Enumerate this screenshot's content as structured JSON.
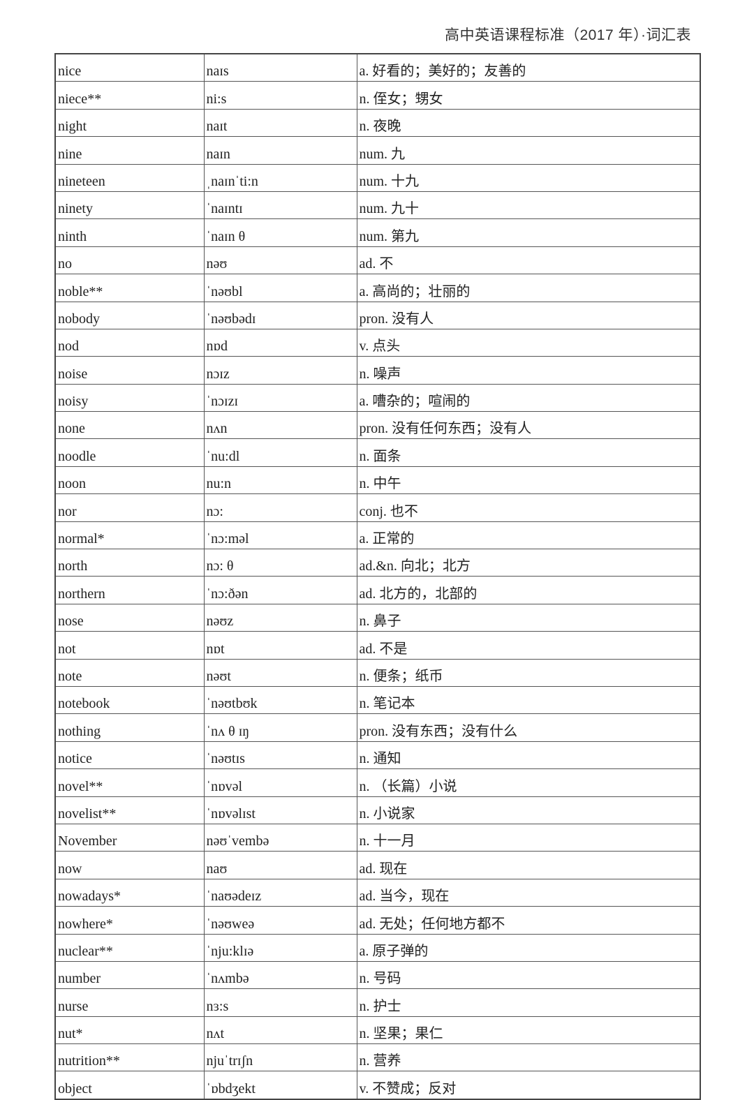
{
  "header": {
    "title": "高中英语课程标准（2017 年）·词汇表"
  },
  "rows": [
    [
      "nice",
      "naɪs",
      "a. 好看的；美好的；友善的"
    ],
    [
      "niece**",
      "ni:s",
      "n. 侄女；甥女"
    ],
    [
      "night",
      "naɪt",
      "n. 夜晚"
    ],
    [
      "nine",
      "naɪn",
      "num. 九"
    ],
    [
      "nineteen",
      "ˌnaɪnˈti:n",
      "num. 十九"
    ],
    [
      "ninety",
      "ˈnaɪntɪ",
      "num. 九十"
    ],
    [
      "ninth",
      "ˈnaɪn θ",
      "num. 第九"
    ],
    [
      "no",
      "nəʊ",
      "ad. 不"
    ],
    [
      "noble**",
      "ˈnəʊbl",
      "a. 高尚的；壮丽的"
    ],
    [
      "nobody",
      "ˈnəʊbədɪ",
      "pron. 没有人"
    ],
    [
      "nod",
      "nɒd",
      "v. 点头"
    ],
    [
      "noise",
      "nɔɪz",
      "n. 噪声"
    ],
    [
      "noisy",
      "ˈnɔɪzɪ",
      "a. 嘈杂的；喧闹的"
    ],
    [
      "none",
      "nʌn",
      "pron. 没有任何东西；没有人"
    ],
    [
      "noodle",
      "ˈnu:dl",
      "n. 面条"
    ],
    [
      "noon",
      "nu:n",
      "n. 中午"
    ],
    [
      "nor",
      "nɔ:",
      "conj. 也不"
    ],
    [
      "normal*",
      "ˈnɔ:məl",
      "a. 正常的"
    ],
    [
      "north",
      "nɔ: θ",
      "ad.&n. 向北；北方"
    ],
    [
      "northern",
      "ˈnɔ:ðən",
      "ad. 北方的，北部的"
    ],
    [
      "nose",
      "nəʊz",
      "n. 鼻子"
    ],
    [
      "not",
      "nɒt",
      "ad. 不是"
    ],
    [
      "note",
      "nəʊt",
      "n. 便条；纸币"
    ],
    [
      "notebook",
      "ˈnəʊtbʊk",
      "n. 笔记本"
    ],
    [
      "nothing",
      "ˈnʌ θ ɪŋ",
      "pron. 没有东西；没有什么"
    ],
    [
      "notice",
      "ˈnəʊtɪs",
      "n. 通知"
    ],
    [
      "novel**",
      "ˈnɒvəl",
      "n. （长篇）小说"
    ],
    [
      "novelist**",
      "ˈnɒvəlɪst",
      "n. 小说家"
    ],
    [
      "November",
      "nəʊˈvembə",
      "n. 十一月"
    ],
    [
      "now",
      "naʊ",
      "ad. 现在"
    ],
    [
      "nowadays*",
      "ˈnaʊədeɪz",
      "ad. 当今，现在"
    ],
    [
      "nowhere*",
      "ˈnəʊweə",
      "ad. 无处；任何地方都不"
    ],
    [
      "nuclear**",
      "ˈnju:klɪə",
      "a. 原子弹的"
    ],
    [
      "number",
      "ˈnʌmbə",
      "n. 号码"
    ],
    [
      "nurse",
      "nɜ:s",
      "n. 护士"
    ],
    [
      "nut*",
      "nʌt",
      "n. 坚果；果仁"
    ],
    [
      "nutrition**",
      "njuˈtrɪʃn",
      "n. 营养"
    ],
    [
      "object",
      "ˈɒbdʒekt",
      "v. 不赞成；反对"
    ]
  ]
}
